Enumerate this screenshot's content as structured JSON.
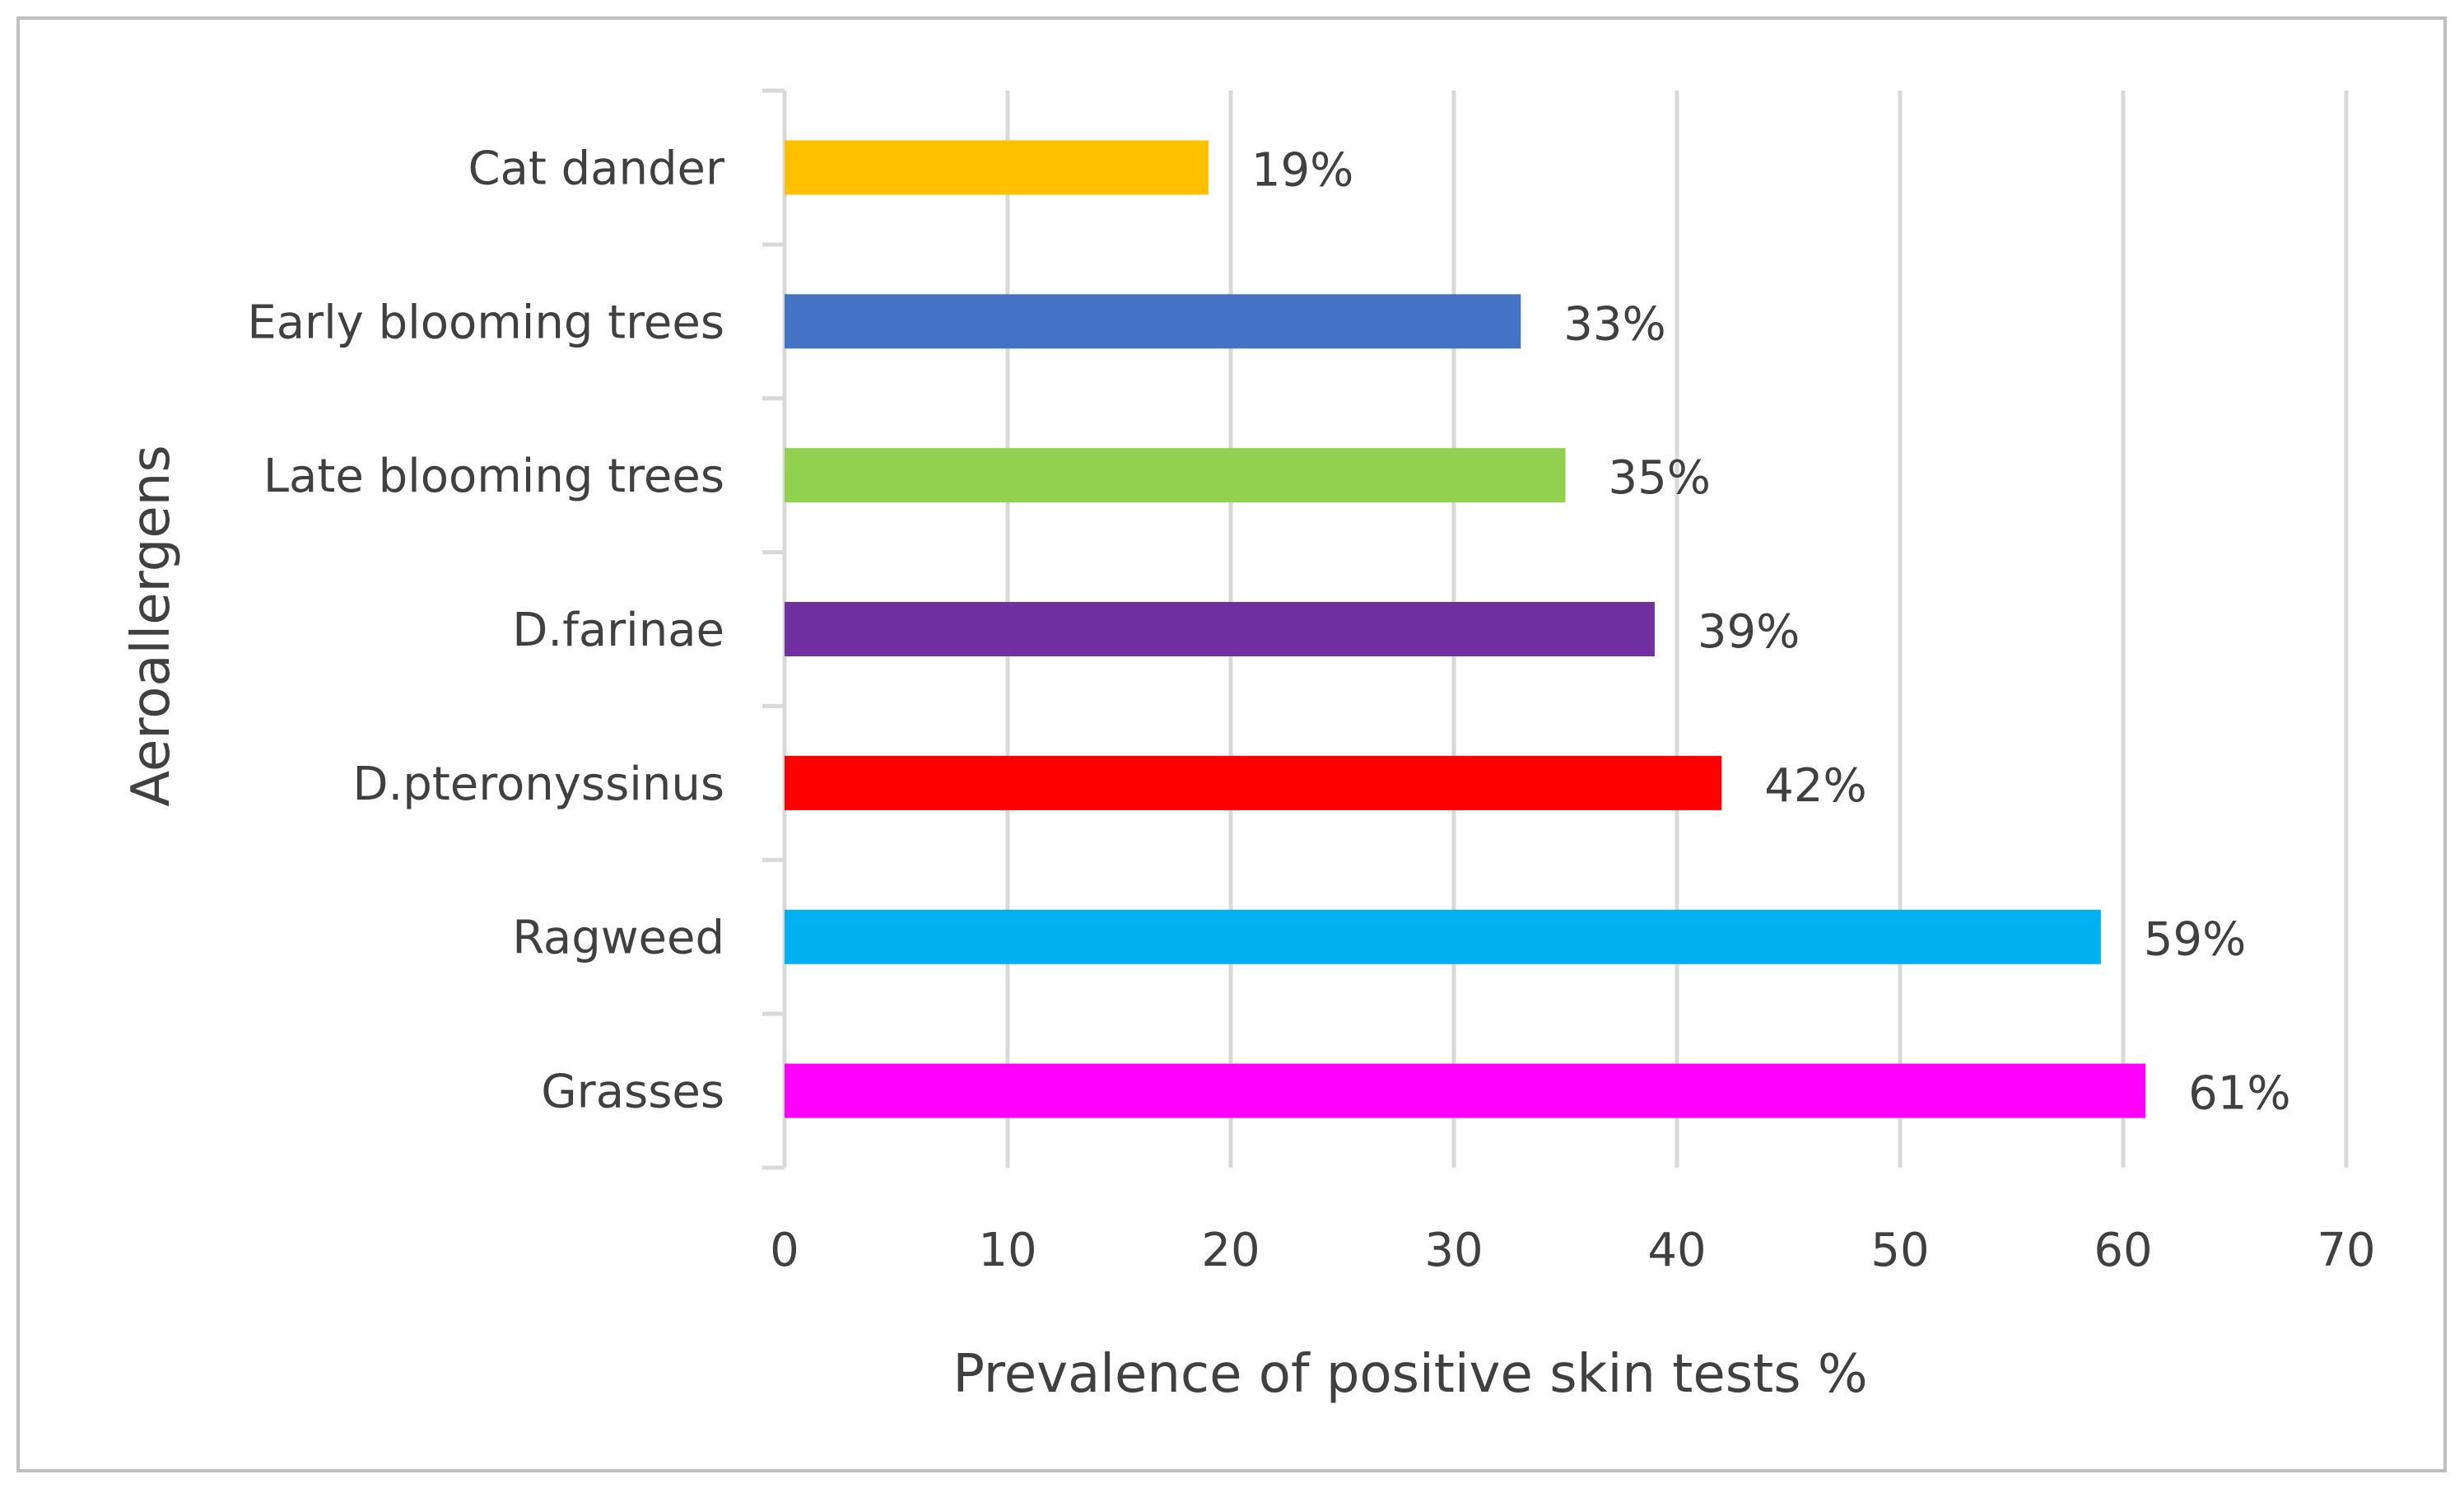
{
  "chart_data": {
    "type": "bar",
    "orientation": "horizontal",
    "categories": [
      "Cat dander",
      "Early blooming trees",
      "Late blooming trees",
      "D.farinae",
      "D.pteronyssinus",
      "Ragweed",
      "Grasses"
    ],
    "values": [
      19,
      33,
      35,
      39,
      42,
      59,
      61
    ],
    "value_labels": [
      "19%",
      "33%",
      "35%",
      "39%",
      "42%",
      "59%",
      "61%"
    ],
    "colors": [
      "#FFC000",
      "#4472C4",
      "#92D050",
      "#7030A0",
      "#FF0000",
      "#00B0F0",
      "#FF00FF"
    ],
    "xlabel": "Prevalence of positive skin tests  %",
    "ylabel": "Aeroallergens",
    "xlim": [
      0,
      70
    ],
    "xticks": [
      "0",
      "10",
      "20",
      "30",
      "40",
      "50",
      "60",
      "70"
    ],
    "grid": true,
    "legend": false,
    "border_color": "#BFBFBF",
    "grid_color": "#D9D9D9",
    "text_color": "#404040"
  }
}
